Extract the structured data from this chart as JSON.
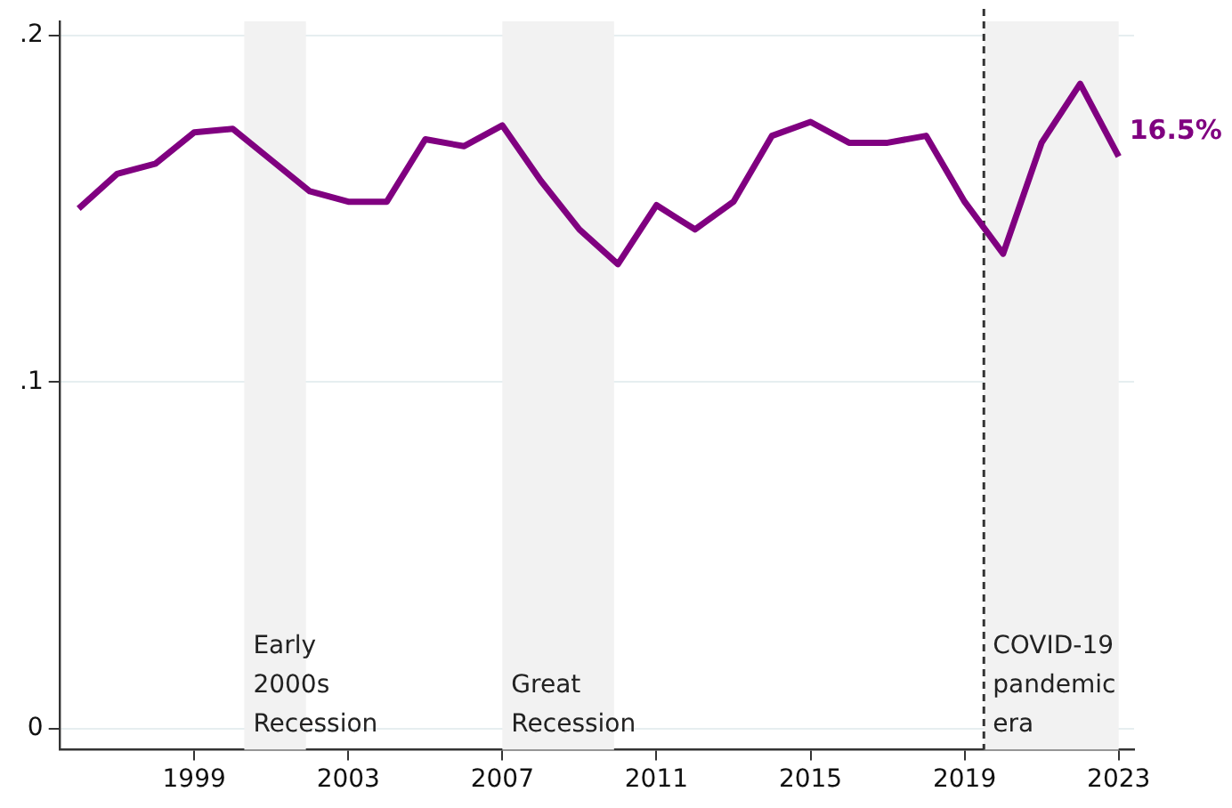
{
  "chart_data": {
    "type": "line",
    "x": [
      1996,
      1997,
      1998,
      1999,
      2000,
      2001,
      2002,
      2003,
      2004,
      2005,
      2006,
      2007,
      2008,
      2009,
      2010,
      2011,
      2012,
      2013,
      2014,
      2015,
      2016,
      2017,
      2018,
      2019,
      2020,
      2021,
      2022,
      2023
    ],
    "series": [
      {
        "color": "#800080",
        "values": [
          0.15,
          0.16,
          0.163,
          0.172,
          0.173,
          0.164,
          0.155,
          0.152,
          0.152,
          0.17,
          0.168,
          0.174,
          0.158,
          0.144,
          0.134,
          0.151,
          0.144,
          0.152,
          0.171,
          0.175,
          0.169,
          0.169,
          0.171,
          0.152,
          0.137,
          0.169,
          0.186,
          0.165
        ]
      }
    ],
    "xlim": [
      1995.5,
      2023.4
    ],
    "xticks": [
      1999,
      2003,
      2007,
      2011,
      2015,
      2019,
      2023
    ],
    "ylim": [
      -0.006,
      0.204
    ],
    "yticks": [
      0,
      {
        "value": 0.1,
        "label": ".1"
      },
      {
        "value": 0.2,
        "label": ".2"
      }
    ],
    "grid": "y",
    "legend": false,
    "marker": "none",
    "line_style": "solid",
    "bands": [
      {
        "axis": "x",
        "from": 2000.3,
        "to": 2001.9,
        "label": "Early\n2000s\nRecession",
        "color": "#f2f2f2"
      },
      {
        "axis": "x",
        "from": 2007.0,
        "to": 2009.9,
        "label": "Great\nRecession",
        "color": "#f2f2f2"
      },
      {
        "axis": "x",
        "from": 2019.5,
        "to": 2023.0,
        "label": "COVID-19\npandemic\nera",
        "color": "#f2f2f2"
      }
    ],
    "ref_lines": [
      {
        "axis": "x",
        "value": 2019.5,
        "color": "#333333",
        "line_style": "dashed"
      }
    ],
    "annotations": [
      {
        "text": "16.5%",
        "x": 2023,
        "y": 0.165
      }
    ]
  }
}
